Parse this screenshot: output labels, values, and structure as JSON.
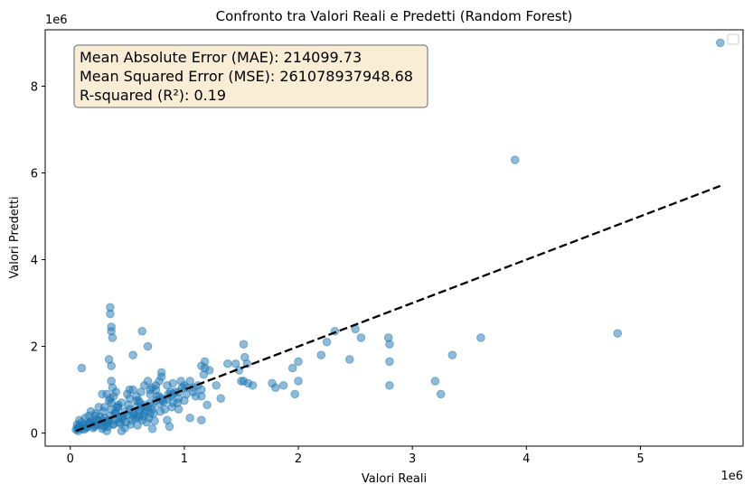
{
  "chart_data": {
    "type": "scatter",
    "title": "Confronto tra Valori Reali e Predetti (Random Forest)",
    "xlabel": "Valori Reali",
    "ylabel": "Valori Predetti",
    "x_offset_label": "1e6",
    "y_offset_label": "1e6",
    "xlim": [
      -0.22,
      5.9
    ],
    "ylim": [
      -0.3,
      9.3
    ],
    "x_ticks": [
      {
        "value": 0,
        "label": "0"
      },
      {
        "value": 1,
        "label": "1"
      },
      {
        "value": 2,
        "label": "2"
      },
      {
        "value": 3,
        "label": "3"
      },
      {
        "value": 4,
        "label": "4"
      },
      {
        "value": 5,
        "label": "5"
      }
    ],
    "y_ticks": [
      {
        "value": 0,
        "label": "0"
      },
      {
        "value": 2,
        "label": "2"
      },
      {
        "value": 4,
        "label": "4"
      },
      {
        "value": 6,
        "label": "6"
      },
      {
        "value": 8,
        "label": "8"
      }
    ],
    "grid": false,
    "legend": {
      "placement": "top-right",
      "entries": []
    },
    "point_color": "#1f77b4",
    "point_alpha": 0.5,
    "reference_line": {
      "style": "dashed",
      "color": "#000000",
      "x": [
        0.05,
        5.7
      ],
      "y": [
        0.05,
        5.7
      ]
    },
    "stats_box": {
      "lines": [
        "Mean Absolute Error (MAE): 214099.73",
        "Mean Squared Error (MSE): 261078937948.68",
        "R-squared (R²): 0.19"
      ],
      "facecolor": "#f5deb3"
    },
    "series": [
      {
        "x": [
          0.05,
          0.06,
          0.07,
          0.08,
          0.1,
          0.12,
          0.15,
          0.18,
          0.2,
          0.22,
          0.25,
          0.28,
          0.3,
          0.32,
          0.35,
          0.38,
          0.4,
          0.42,
          0.45,
          0.48,
          0.5,
          0.52,
          0.55,
          0.58,
          0.6,
          0.62,
          0.65,
          0.68,
          0.7,
          0.72,
          0.75,
          0.78,
          0.8,
          0.82,
          0.85,
          0.88,
          0.9,
          0.95,
          0.06,
          0.08,
          0.1,
          0.13,
          0.16,
          0.19,
          0.22,
          0.26,
          0.29,
          0.33,
          0.36,
          0.41,
          0.46,
          0.51,
          0.56,
          0.61,
          0.66,
          0.71,
          0.76,
          0.81,
          0.86,
          0.92,
          0.98,
          0.07,
          0.11,
          0.14,
          0.17,
          0.21,
          0.24,
          0.27,
          0.31,
          0.34,
          0.37,
          0.39,
          0.43,
          0.47,
          0.53,
          0.57,
          0.63,
          0.67,
          0.73,
          0.79,
          0.09,
          0.12,
          0.16,
          0.2,
          0.23,
          0.28,
          0.33,
          0.38,
          0.44,
          0.49,
          0.54,
          0.59,
          0.64,
          0.69,
          0.74,
          0.83,
          0.89,
          0.94,
          1.0,
          0.3,
          0.35,
          0.32,
          0.34,
          0.36,
          0.4,
          0.42,
          0.38,
          0.5,
          0.52,
          0.45,
          0.55,
          0.58,
          0.62,
          0.65,
          0.6,
          0.68,
          0.7,
          0.72,
          0.75,
          0.78,
          0.8,
          0.85,
          0.88,
          0.9,
          0.95,
          1.0,
          1.02,
          1.05,
          1.08,
          1.1,
          1.12,
          1.15,
          1.18,
          0.1,
          0.35,
          0.35,
          0.36,
          0.36,
          0.37,
          0.34,
          0.36,
          0.36,
          0.37,
          0.63,
          0.68,
          0.75,
          0.78,
          0.7,
          0.65,
          0.7,
          0.6,
          0.55,
          1.02,
          1.08,
          1.15,
          1.17,
          1.18,
          1.2,
          1.15,
          1.22,
          1.28,
          1.32,
          1.38,
          1.45,
          1.48,
          1.52,
          1.53,
          1.5,
          1.55,
          1.52,
          1.56,
          1.6,
          1.8,
          1.87,
          1.95,
          2.0,
          1.97,
          2.0,
          2.2,
          2.25,
          2.32,
          2.45,
          2.5,
          2.55,
          2.8,
          2.8,
          2.79,
          2.8,
          3.2,
          3.25,
          3.35,
          3.6,
          3.9,
          4.8,
          5.7,
          1.77,
          0.8,
          1.15,
          0.52,
          0.45,
          0.25,
          0.28,
          0.4,
          0.6,
          0.9,
          0.95,
          1.05,
          0.48,
          0.58,
          0.42,
          0.3,
          0.32,
          0.22,
          0.18,
          0.55,
          0.65,
          0.72,
          0.85,
          0.87,
          0.97
        ],
        "y": [
          0.08,
          0.12,
          0.05,
          0.18,
          0.1,
          0.2,
          0.15,
          0.22,
          0.25,
          0.18,
          0.28,
          0.3,
          0.35,
          0.22,
          0.4,
          0.3,
          0.45,
          0.35,
          0.38,
          0.5,
          0.42,
          0.55,
          0.48,
          0.6,
          0.52,
          0.58,
          0.65,
          0.6,
          0.7,
          0.55,
          0.75,
          0.68,
          0.8,
          0.72,
          0.78,
          0.85,
          0.9,
          0.95,
          0.2,
          0.3,
          0.25,
          0.35,
          0.4,
          0.3,
          0.45,
          0.38,
          0.5,
          0.28,
          0.55,
          0.6,
          0.32,
          0.65,
          0.45,
          0.7,
          0.5,
          0.62,
          0.85,
          0.75,
          0.9,
          0.95,
          1.05,
          0.1,
          0.15,
          0.12,
          0.25,
          0.15,
          0.2,
          0.18,
          0.25,
          0.3,
          0.2,
          0.45,
          0.25,
          0.4,
          0.2,
          0.35,
          0.3,
          0.25,
          0.45,
          0.5,
          0.15,
          0.08,
          0.22,
          0.12,
          0.3,
          0.1,
          0.15,
          0.2,
          0.22,
          0.25,
          0.3,
          0.18,
          0.4,
          0.35,
          0.28,
          0.55,
          0.6,
          0.7,
          1.1,
          0.6,
          0.8,
          0.9,
          0.75,
          0.7,
          0.95,
          0.65,
          0.85,
          0.9,
          0.8,
          0.7,
          1.0,
          0.85,
          0.95,
          1.1,
          0.75,
          1.2,
          0.9,
          1.05,
          1.0,
          0.85,
          1.3,
          1.1,
          0.95,
          1.15,
          0.8,
          0.75,
          0.9,
          1.2,
          1.05,
          0.85,
          1.1,
          1.0,
          1.5,
          1.5,
          2.75,
          2.9,
          2.45,
          2.35,
          2.2,
          1.7,
          1.55,
          1.2,
          1.05,
          2.35,
          2.0,
          1.1,
          1.2,
          1.0,
          0.6,
          0.45,
          0.35,
          1.8,
          1.05,
          0.95,
          0.3,
          1.35,
          1.65,
          0.65,
          1.55,
          1.45,
          1.1,
          0.8,
          1.6,
          1.6,
          1.45,
          2.05,
          1.75,
          1.2,
          1.6,
          1.2,
          1.15,
          1.1,
          1.05,
          1.1,
          1.5,
          1.65,
          0.9,
          1.2,
          1.8,
          2.1,
          2.35,
          1.7,
          2.4,
          2.2,
          2.05,
          1.65,
          2.2,
          1.1,
          1.2,
          0.9,
          1.8,
          2.2,
          6.3,
          2.3,
          9.0,
          1.15,
          1.4,
          0.85,
          1.0,
          0.05,
          0.6,
          0.9,
          0.5,
          0.4,
          0.7,
          0.55,
          0.35,
          0.12,
          0.75,
          0.6,
          0.15,
          0.05,
          0.4,
          0.5,
          0.4,
          0.45,
          0.1,
          0.3,
          0.15,
          1.2
        ]
      }
    ]
  }
}
